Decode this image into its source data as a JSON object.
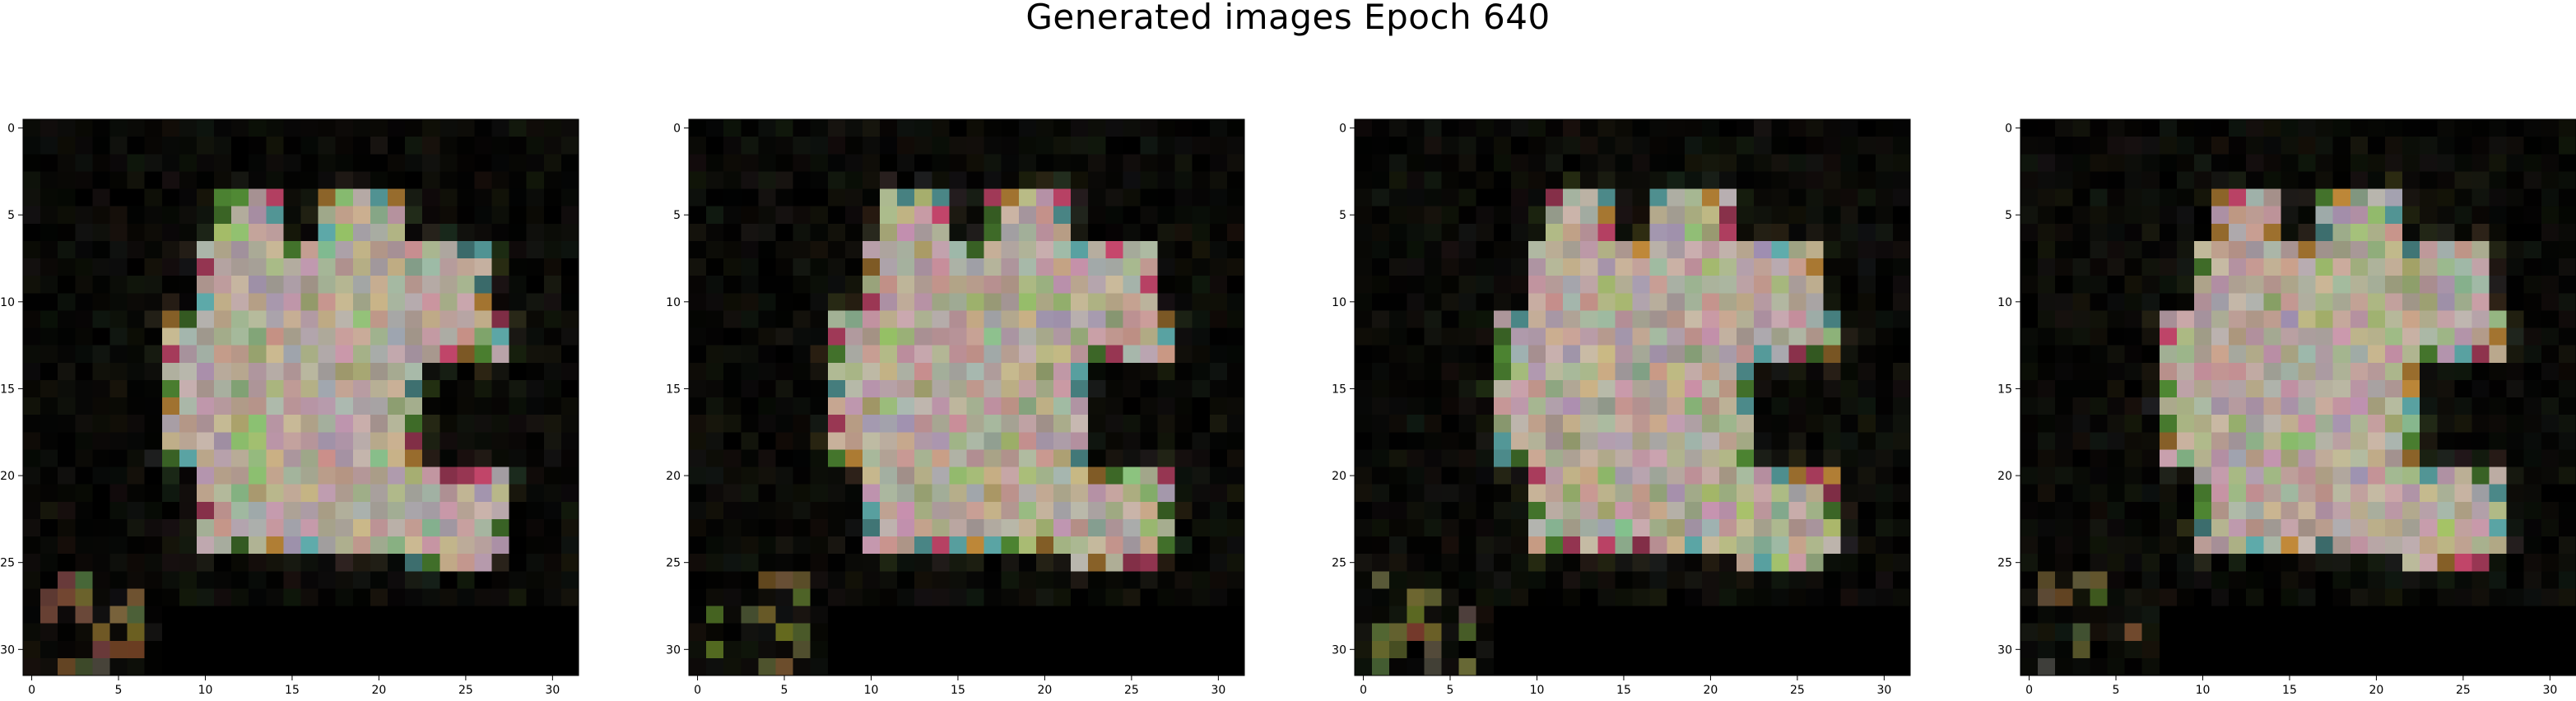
{
  "title": "Generated images Epoch 640",
  "axis": {
    "xticks": [
      "0",
      "5",
      "10",
      "15",
      "20",
      "25",
      "30"
    ],
    "yticks": [
      "0",
      "5",
      "10",
      "15",
      "20",
      "25",
      "30"
    ],
    "xtick_values": [
      0,
      5,
      10,
      15,
      20,
      25,
      30
    ],
    "ytick_values": [
      0,
      5,
      10,
      15,
      20,
      25,
      30
    ],
    "range": [
      -0.5,
      31.5
    ]
  },
  "images": [
    {
      "grid_size": 32,
      "seed": 11
    },
    {
      "grid_size": 32,
      "seed": 23
    },
    {
      "grid_size": 32,
      "seed": 37
    },
    {
      "grid_size": 32,
      "seed": 53
    }
  ],
  "colors": {
    "background": "#000000",
    "body_tone": "#b4a49a",
    "accent_pink": "#e0507a",
    "accent_orange": "#d89a40",
    "accent_green": "#5a9a3a",
    "accent_cyan": "#6ac0c0"
  }
}
